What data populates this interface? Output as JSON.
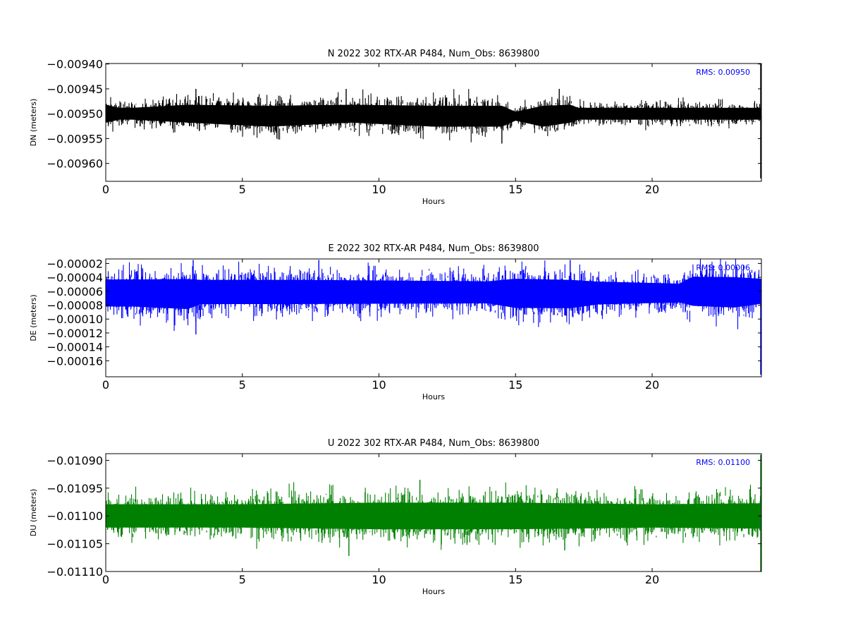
{
  "chart_data": [
    {
      "type": "line",
      "title": "N 2022 302 RTX-AR  P484, Num_Obs: 8639800",
      "xlabel": "Hours",
      "ylabel": "DN (meters)",
      "xlim": [
        0,
        24
      ],
      "ylim": [
        -0.009636,
        -0.009399
      ],
      "xticks": [
        "0",
        "5",
        "10",
        "15",
        "20"
      ],
      "yticks": [
        "−0.00940",
        "−0.00945",
        "−0.00950",
        "−0.00955",
        "−0.00960"
      ],
      "series": [
        {
          "color": "#000000",
          "center": -0.0095,
          "envelope_by_hour": [
            [
              0,
              -0.00953,
              -0.00947
            ],
            [
              0.5,
              -0.00952,
              -0.00948
            ],
            [
              1,
              -0.00952,
              -0.00948
            ],
            [
              3,
              -0.00953,
              -0.00947
            ],
            [
              6,
              -0.00954,
              -0.00947
            ],
            [
              9,
              -0.00953,
              -0.00947
            ],
            [
              12,
              -0.00954,
              -0.00947
            ],
            [
              14.5,
              -0.00954,
              -0.00947
            ],
            [
              15,
              -0.00952,
              -0.00949
            ],
            [
              16,
              -0.00954,
              -0.00947
            ],
            [
              17,
              -0.00953,
              -0.00947
            ],
            [
              17.3,
              -0.00952,
              -0.00948
            ],
            [
              22,
              -0.00952,
              -0.00948
            ],
            [
              24,
              -0.00952,
              -0.00948
            ]
          ],
          "spikes_by_hour": [
            [
              3.3,
              -0.00945
            ],
            [
              8.8,
              -0.00945
            ],
            [
              14.5,
              -0.00956
            ],
            [
              16.6,
              -0.00945
            ],
            [
              24,
              -0.0094
            ],
            [
              24,
              -0.00963
            ]
          ]
        }
      ],
      "annotation": "RMS:  0.00950"
    },
    {
      "type": "line",
      "title": "E 2022 302 RTX-AR  P484, Num_Obs: 8639800",
      "xlabel": "Hours",
      "ylabel": "DE (meters)",
      "xlim": [
        0,
        24
      ],
      "ylim": [
        -0.000183,
        -1.35e-05
      ],
      "xticks": [
        "0",
        "5",
        "10",
        "15",
        "20"
      ],
      "yticks": [
        "−0.00002",
        "−0.00004",
        "−0.00006",
        "−0.00008",
        "−0.00010",
        "−0.00012",
        "−0.00014",
        "−0.00016"
      ],
      "series": [
        {
          "color": "#0000ff",
          "center": -6e-05,
          "envelope_by_hour": [
            [
              0,
              -9.5e-05,
              -3e-05
            ],
            [
              1,
              -9.5e-05,
              -3e-05
            ],
            [
              3,
              -0.0001,
              -2.8e-05
            ],
            [
              3.5,
              -9e-05,
              -3.2e-05
            ],
            [
              7,
              -9e-05,
              -3.2e-05
            ],
            [
              14,
              -8.8e-05,
              -3.5e-05
            ],
            [
              15,
              -9.8e-05,
              -2.8e-05
            ],
            [
              17,
              -9.8e-05,
              -3e-05
            ],
            [
              18,
              -9e-05,
              -3.5e-05
            ],
            [
              21,
              -8.5e-05,
              -4e-05
            ],
            [
              21.5,
              -9.5e-05,
              -2.5e-05
            ],
            [
              23,
              -9.8e-05,
              -2.5e-05
            ],
            [
              24,
              -9e-05,
              -3e-05
            ]
          ],
          "spikes_by_hour": [
            [
              3.2,
              -1.5e-05
            ],
            [
              3.3,
              -0.000122
            ],
            [
              7.8,
              -1.5e-05
            ],
            [
              17.0,
              -1.5e-05
            ],
            [
              24,
              -0.00018
            ]
          ]
        }
      ],
      "annotation": "RMS:  0.00006"
    },
    {
      "type": "line",
      "title": "U 2022 302 RTX-AR  P484, Num_Obs: 8639800",
      "xlabel": "Hours",
      "ylabel": "DU (meters)",
      "xlim": [
        0,
        24
      ],
      "ylim": [
        -0.0111,
        -0.010888
      ],
      "xticks": [
        "0",
        "5",
        "10",
        "15",
        "20"
      ],
      "yticks": [
        "−0.01090",
        "−0.01095",
        "−0.01100",
        "−0.01105",
        "−0.01110"
      ],
      "series": [
        {
          "color": "#008000",
          "center": -0.011,
          "envelope_by_hour": [
            [
              0,
              -0.011035,
              -0.010965
            ],
            [
              5,
              -0.011035,
              -0.010965
            ],
            [
              10,
              -0.01104,
              -0.01096
            ],
            [
              15,
              -0.01104,
              -0.01096
            ],
            [
              20,
              -0.011035,
              -0.010965
            ],
            [
              24,
              -0.011038,
              -0.010962
            ]
          ],
          "spikes_by_hour": [
            [
              8.9,
              -0.011072
            ],
            [
              11.5,
              -0.010935
            ],
            [
              16.8,
              -0.011062
            ],
            [
              24,
              -0.01089
            ],
            [
              24,
              -0.0111
            ]
          ]
        }
      ],
      "annotation": "RMS:  0.01100"
    }
  ]
}
